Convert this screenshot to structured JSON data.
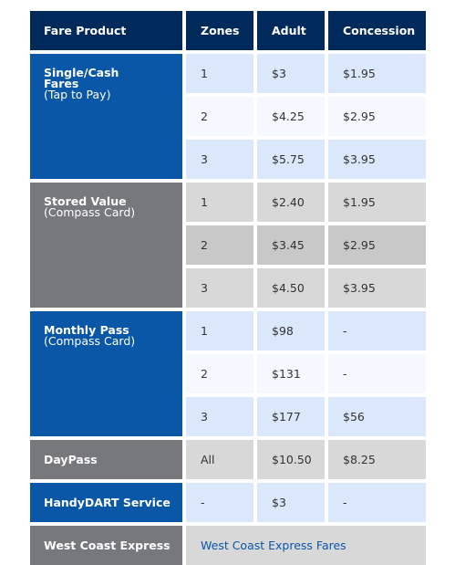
{
  "headers": {
    "product": "Fare Product",
    "zones": "Zones",
    "adult": "Adult",
    "concession": "Concession"
  },
  "products": {
    "single": {
      "title": "Single/Cash Fares",
      "subtitle": "(Tap to Pay)"
    },
    "stored": {
      "title": "Stored Value",
      "subtitle": "(Compass Card)"
    },
    "monthly": {
      "title": "Monthly Pass",
      "subtitle": "(Compass Card)"
    },
    "daypass": {
      "title": "DayPass"
    },
    "handydart": {
      "title": "HandyDART Service"
    },
    "wce": {
      "title": "West Coast Express",
      "link": "West Coast Express Fares"
    }
  },
  "rows": [
    {
      "zone": "1",
      "adult": "$3",
      "concession": "$1.95"
    },
    {
      "zone": "2",
      "adult": "$4.25",
      "concession": "$2.95"
    },
    {
      "zone": "3",
      "adult": "$5.75",
      "concession": "$3.95"
    },
    {
      "zone": "1",
      "adult": "$2.40",
      "concession": "$1.95"
    },
    {
      "zone": "2",
      "adult": "$3.45",
      "concession": "$2.95"
    },
    {
      "zone": "3",
      "adult": "$4.50",
      "concession": "$3.95"
    },
    {
      "zone": "1",
      "adult": "$98",
      "concession": "-"
    },
    {
      "zone": "2",
      "adult": "$131",
      "concession": "-"
    },
    {
      "zone": "3",
      "adult": "$177",
      "concession": "$56"
    },
    {
      "zone": "All",
      "adult": "$10.50",
      "concession": "$8.25"
    },
    {
      "zone": "-",
      "adult": "$3",
      "concession": "-"
    }
  ],
  "colors": {
    "header": "#002a5c",
    "blue_product": "#0a57a8",
    "gray_product": "#77787b",
    "link": "#0a57a8"
  }
}
